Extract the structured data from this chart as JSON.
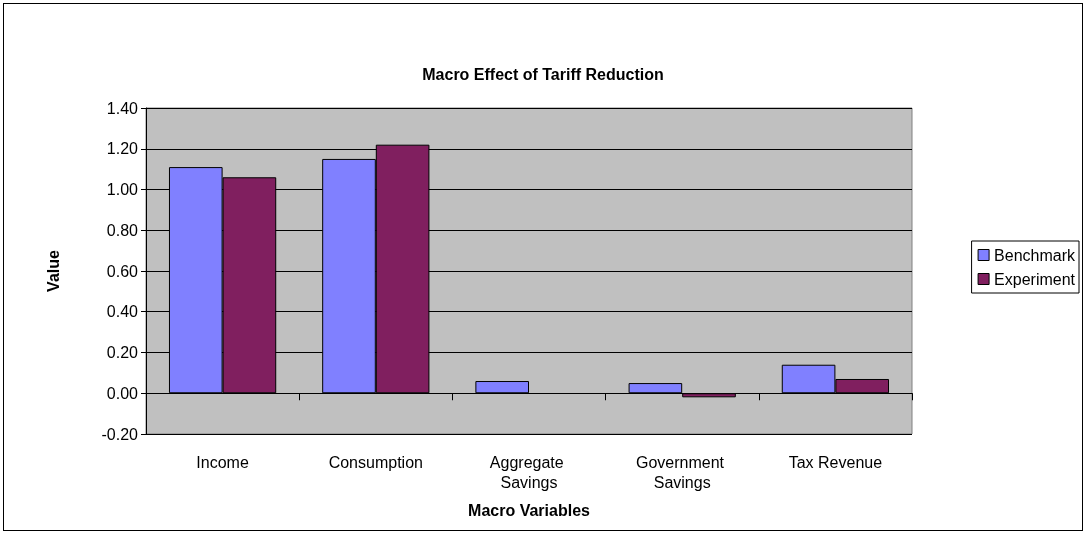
{
  "chart_data": {
    "type": "bar",
    "title": "Macro Effect of Tariff Reduction",
    "xlabel": "Macro Variables",
    "ylabel": "Value",
    "categories": [
      "Income",
      "Consumption",
      "Aggregate Savings",
      "Government Savings",
      "Tax Revenue"
    ],
    "series": [
      {
        "name": "Benchmark",
        "color": "#8080ff",
        "values": [
          1.11,
          1.15,
          0.06,
          0.05,
          0.14
        ]
      },
      {
        "name": "Experiment",
        "color": "#801f5f",
        "values": [
          1.06,
          1.22,
          null,
          -0.02,
          0.07
        ]
      }
    ],
    "ylim": [
      -0.2,
      1.4
    ],
    "yticks": [
      {
        "value": -0.2,
        "label": "-0.20"
      },
      {
        "value": 0,
        "label": "0.00"
      },
      {
        "value": 0.2,
        "label": "0.20"
      },
      {
        "value": 0.4,
        "label": "0.40"
      },
      {
        "value": 0.6,
        "label": "0.60"
      },
      {
        "value": 0.8,
        "label": "0.80"
      },
      {
        "value": 1.0,
        "label": "1.00"
      },
      {
        "value": 1.2,
        "label": "1.20"
      },
      {
        "value": 1.4,
        "label": "1.40"
      }
    ],
    "grid": "y",
    "legend": "right"
  }
}
